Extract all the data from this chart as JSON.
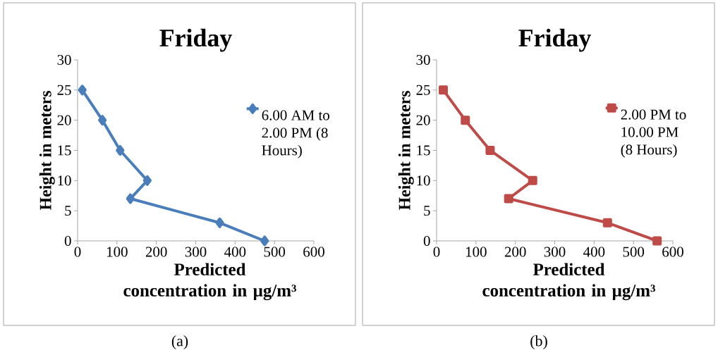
{
  "chart_data": [
    {
      "type": "line",
      "title": "Friday",
      "xlabel": "Predicted concentration in µg/m³",
      "ylabel": "Height in meters",
      "xlim": [
        0,
        600
      ],
      "ylim": [
        0,
        30
      ],
      "xticks": [
        0,
        100,
        200,
        300,
        400,
        500,
        600
      ],
      "yticks": [
        0,
        5,
        10,
        15,
        20,
        25,
        30
      ],
      "marker": "diamond",
      "legend": "right",
      "annotations": [
        "(a)"
      ],
      "series": [
        {
          "name": "6.00 AM to 2.00 PM (8 Hours)",
          "color": "#4a7ebb",
          "x": [
            12,
            63,
            108,
            177,
            134,
            361,
            475
          ],
          "values": [
            25,
            20,
            15,
            10,
            7,
            3,
            0
          ]
        }
      ]
    },
    {
      "type": "line",
      "title": "Friday",
      "xlabel": "Predicted concentration in µg/m³",
      "ylabel": "Height in meters",
      "xlim": [
        0,
        600
      ],
      "ylim": [
        0,
        30
      ],
      "xticks": [
        0,
        100,
        200,
        300,
        400,
        500,
        600
      ],
      "yticks": [
        0,
        5,
        10,
        15,
        20,
        25,
        30
      ],
      "marker": "square",
      "legend": "right",
      "annotations": [
        "(b)"
      ],
      "series": [
        {
          "name": "2.00 PM to 10.00 PM (8 Hours)",
          "color": "#be4b48",
          "x": [
            17,
            73,
            136,
            244,
            183,
            434,
            560
          ],
          "values": [
            25,
            20,
            15,
            10,
            7,
            3,
            0
          ]
        }
      ]
    }
  ]
}
